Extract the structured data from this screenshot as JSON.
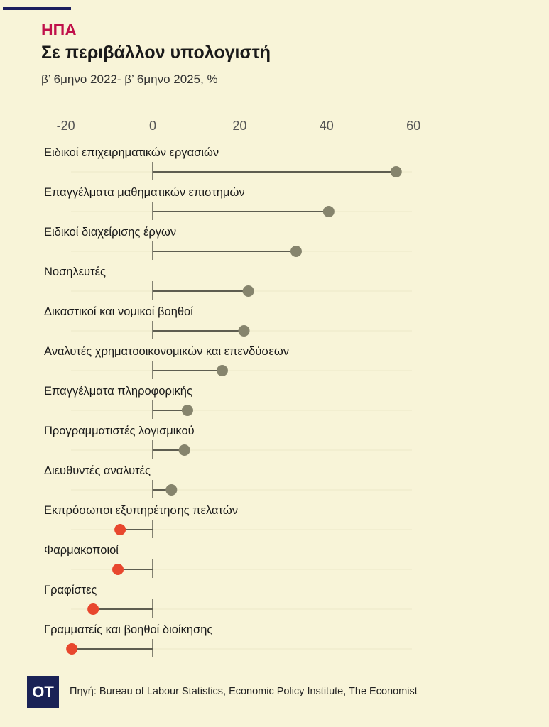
{
  "header": {
    "country": "ΗΠΑ",
    "title": "Σε περιβάλλον υπολογιστή",
    "subtitle": "β’ 6μηνο 2022- β’ 6μηνο 2025, %"
  },
  "chart_data": {
    "type": "lollipop",
    "title": "Σε περιβάλλον υπολογιστή",
    "xlim": [
      -20,
      60
    ],
    "xticks": [
      "-20",
      "0",
      "20",
      "40",
      "60"
    ],
    "xtick_values": [
      -20,
      0,
      20,
      40,
      60
    ],
    "categories": [
      "Ειδικοί επιχειρηματικών εργασιών",
      "Επαγγέλματα μαθηματικών επιστημών",
      "Ειδικοί διαχείρισης έργων",
      "Νοσηλευτές",
      "Δικαστικοί και νομικοί βοηθοί",
      "Αναλυτές χρηματοοικονομικών και επενδύσεων",
      "Επαγγέλματα πληροφορικής",
      "Προγραμματιστές λογισμικού",
      "Διευθυντές αναλυτές",
      "Εκπρόσωποι εξυπηρέτησης πελατών",
      "Φαρμακοποιοί",
      "Γραφίστες",
      "Γραμματείς και βοηθοί διοίκησης"
    ],
    "values": [
      56,
      40.5,
      33,
      22,
      21,
      16,
      8,
      7.3,
      4.3,
      -7.5,
      -8,
      -13.7,
      -18.6
    ],
    "colors": {
      "positive": "#86846d",
      "negative": "#e8472e",
      "line": "#5e5d50",
      "axis_text": "#555"
    }
  },
  "footer": {
    "logo": "OT",
    "source": "Πηγή: Bureau of Labour Statistics, Economic Policy Institute, The Economist"
  }
}
